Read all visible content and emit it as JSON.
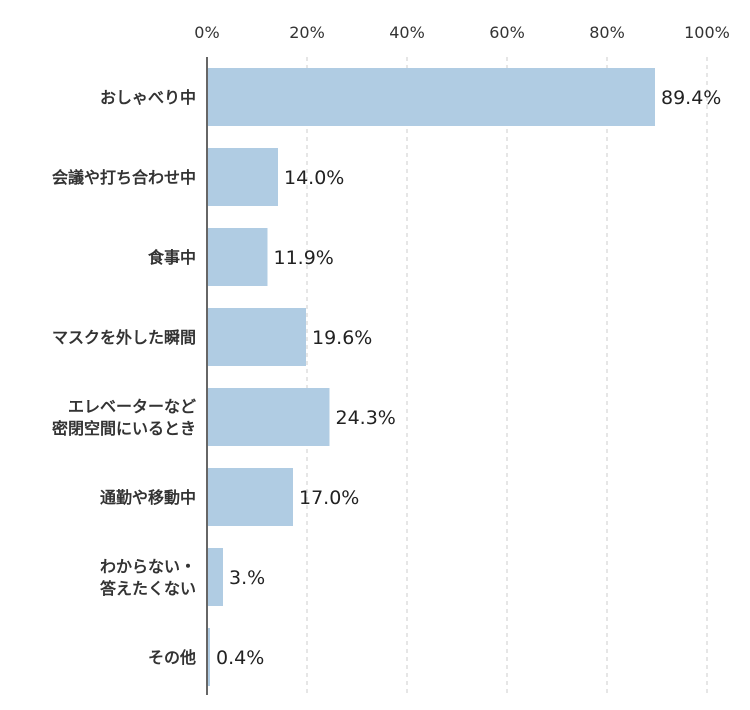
{
  "chart_data": {
    "type": "bar",
    "orientation": "horizontal",
    "title": "",
    "xlabel": "",
    "ylabel": "",
    "xlim": [
      0,
      100
    ],
    "x_ticks": [
      "0%",
      "20%",
      "40%",
      "60%",
      "80%",
      "100%"
    ],
    "grid": "vertical dashed",
    "legend": "none",
    "categories": [
      [
        "おしゃべり中"
      ],
      [
        "会議や打ち合わせ中"
      ],
      [
        "食事中"
      ],
      [
        "マスクを外した瞬間"
      ],
      [
        "エレベーターなど",
        "密閉空間にいるとき"
      ],
      [
        "通勤や移動中"
      ],
      [
        "わからない・",
        "答えたくない"
      ],
      [
        "その他"
      ]
    ],
    "values": [
      89.4,
      14.0,
      11.9,
      19.6,
      24.3,
      17.0,
      3.0,
      0.4
    ],
    "value_labels": [
      "89.4%",
      "14.0%",
      "11.9%",
      "19.6%",
      "24.3%",
      "17.0%",
      "3.%",
      "0.4%"
    ],
    "bar_color": "#b0cce3",
    "grid_color": "#cccccc",
    "axis_color": "#333333"
  }
}
